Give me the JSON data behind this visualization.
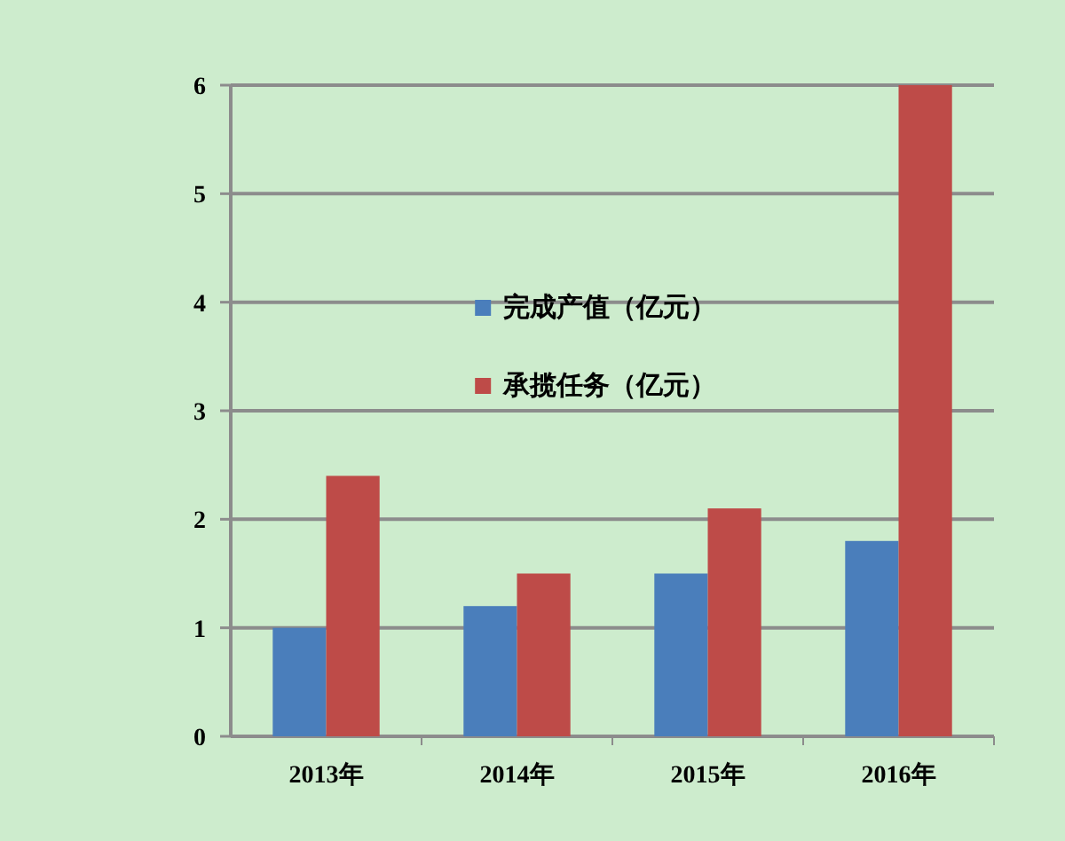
{
  "chart_data": {
    "type": "bar",
    "categories": [
      "2013年",
      "2014年",
      "2015年",
      "2016年"
    ],
    "series": [
      {
        "name": "完成产值（亿元）",
        "color": "#4a7ebb",
        "values": [
          1.0,
          1.2,
          1.5,
          1.8
        ]
      },
      {
        "name": "承揽任务（亿元）",
        "color": "#be4b48",
        "values": [
          2.4,
          1.5,
          2.1,
          6.0
        ]
      }
    ],
    "ylim": [
      0,
      6
    ],
    "yticks": [
      0,
      1,
      2,
      3,
      4,
      5,
      6
    ],
    "grid": "y",
    "legend": "top"
  }
}
